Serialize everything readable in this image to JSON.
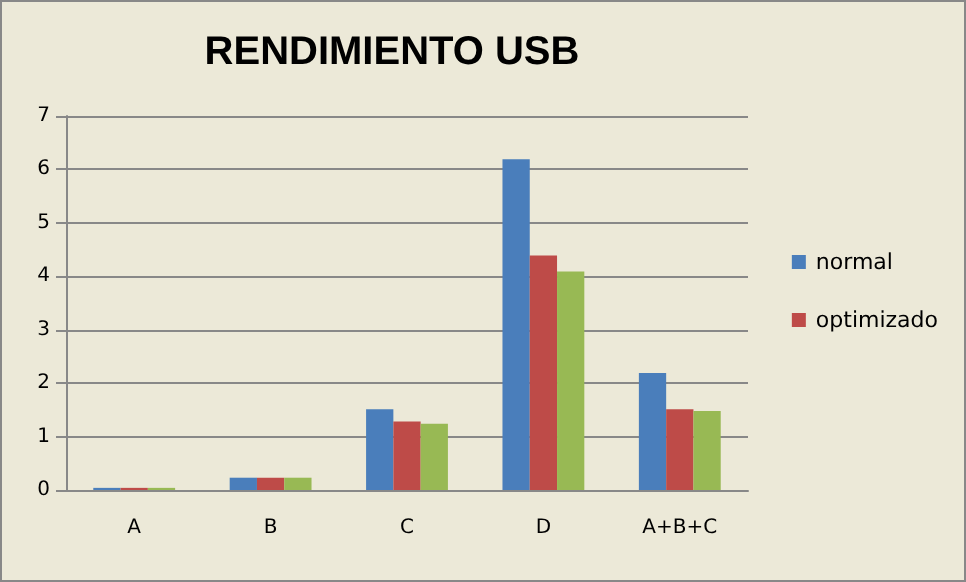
{
  "chart_data": {
    "type": "bar",
    "title": "RENDIMIENTO USB",
    "categories": [
      "A",
      "B",
      "C",
      "D",
      "A+B+C"
    ],
    "series": [
      {
        "name": "normal",
        "color": "#4a7ebb",
        "values": [
          0.04,
          0.23,
          1.51,
          6.19,
          2.19
        ]
      },
      {
        "name": "optimizado",
        "color": "#be4b48",
        "values": [
          0.04,
          0.23,
          1.28,
          4.39,
          1.51
        ]
      },
      {
        "color": "#98b954",
        "values": [
          0.04,
          0.23,
          1.24,
          4.09,
          1.48
        ]
      }
    ],
    "ylim": [
      0,
      7
    ],
    "yticks": [
      0,
      1,
      2,
      3,
      4,
      5,
      6,
      7
    ],
    "grid": "y",
    "legend": "right"
  }
}
